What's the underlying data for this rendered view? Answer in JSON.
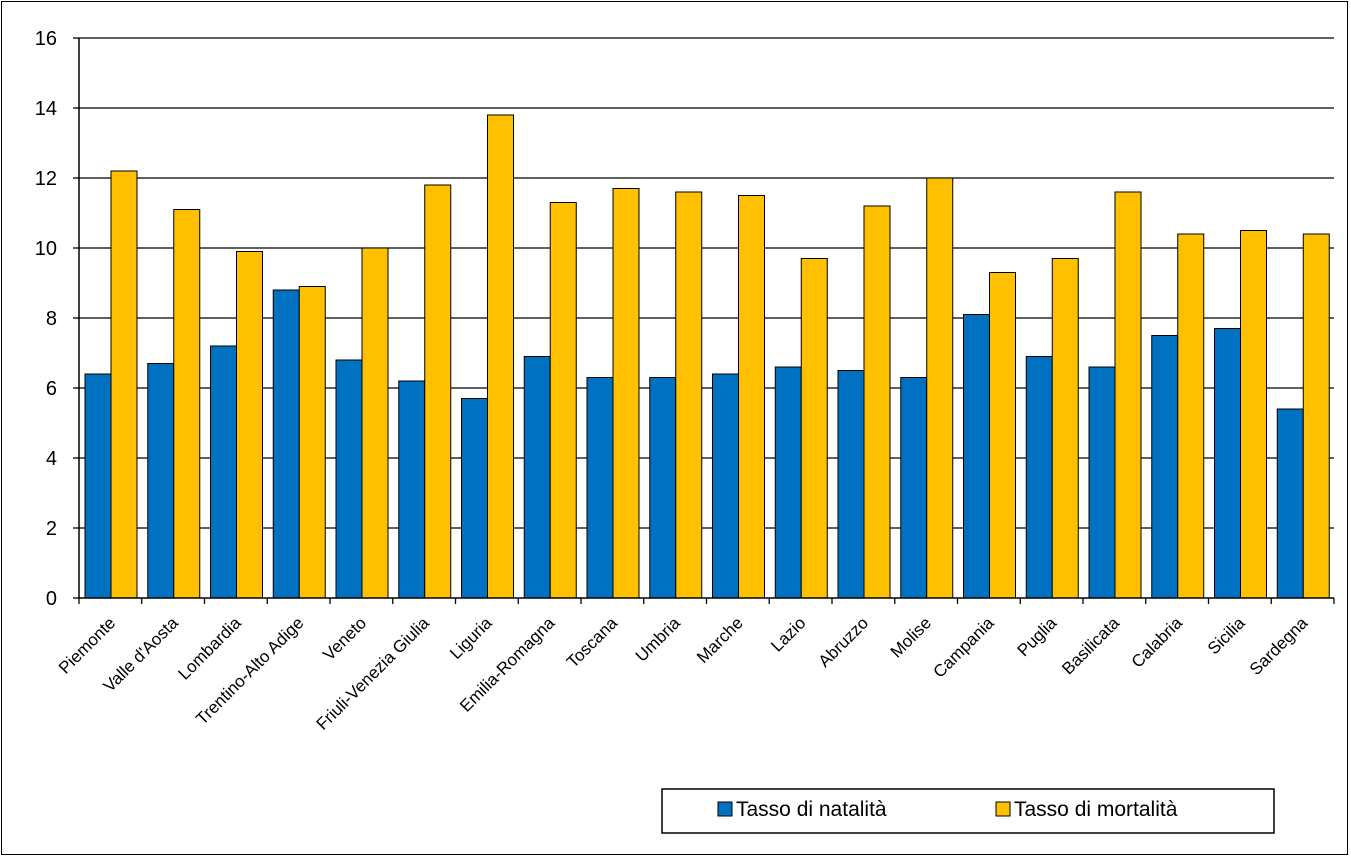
{
  "chart_data": {
    "type": "bar",
    "title": "",
    "xlabel": "",
    "ylabel": "",
    "ylim": [
      0,
      16
    ],
    "yticks": [
      0,
      2,
      4,
      6,
      8,
      10,
      12,
      14,
      16
    ],
    "grid": "horizontal",
    "legend_position": "bottom-right",
    "categories": [
      "Piemonte",
      "Valle d'Aosta",
      "Lombardia",
      "Trentino-Alto Adige",
      "Veneto",
      "Friuli-Venezia Giulia",
      "Liguria",
      "Emilia-Romagna",
      "Toscana",
      "Umbria",
      "Marche",
      "Lazio",
      "Abruzzo",
      "Molise",
      "Campania",
      "Puglia",
      "Basilicata",
      "Calabria",
      "Sicilia",
      "Sardegna"
    ],
    "series": [
      {
        "name": "Tasso di natalità",
        "color": "#0070C0",
        "values": [
          6.4,
          6.7,
          7.2,
          8.8,
          6.8,
          6.2,
          5.7,
          6.9,
          6.3,
          6.3,
          6.4,
          6.6,
          6.5,
          6.3,
          8.1,
          6.9,
          6.6,
          7.5,
          7.7,
          5.4
        ]
      },
      {
        "name": "Tasso di mortalità",
        "color": "#FFC000",
        "values": [
          12.2,
          11.1,
          9.9,
          8.9,
          10.0,
          11.8,
          13.8,
          11.3,
          11.7,
          11.6,
          11.5,
          9.7,
          11.2,
          12.0,
          9.3,
          9.7,
          11.6,
          10.4,
          10.5,
          10.4
        ]
      }
    ]
  }
}
